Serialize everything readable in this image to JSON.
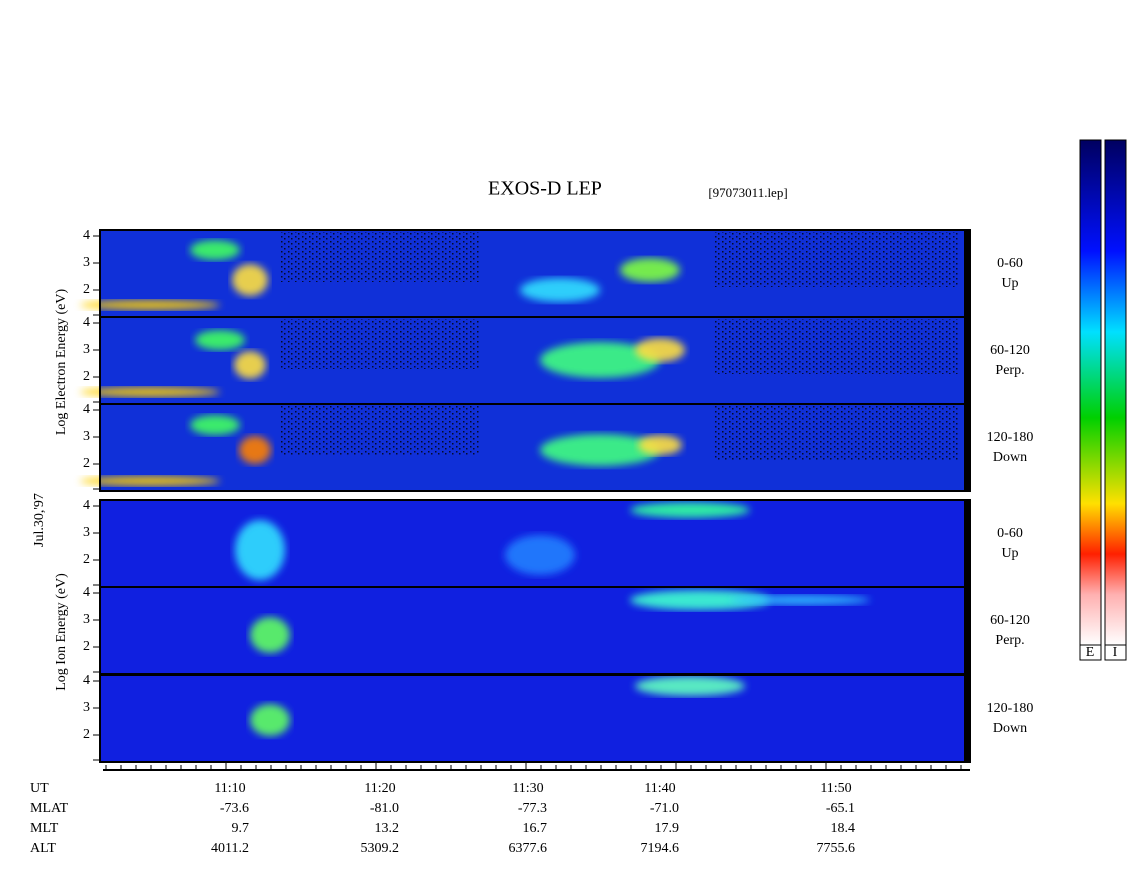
{
  "header": {
    "title": "EXOS-D LEP",
    "file": "[97073011.lep]"
  },
  "date": "Jul.30,'97",
  "electron": {
    "axis_label": "Log Electron Energy (eV)",
    "panels": [
      {
        "pitch": "0-60",
        "direction": "Up",
        "ticks": [
          4,
          3,
          2
        ]
      },
      {
        "pitch": "60-120",
        "direction": "Perp.",
        "ticks": [
          4,
          3,
          2
        ]
      },
      {
        "pitch": "120-180",
        "direction": "Down",
        "ticks": [
          4,
          3,
          2
        ]
      }
    ]
  },
  "ion": {
    "axis_label": "Log Ion Energy (eV)",
    "panels": [
      {
        "pitch": "0-60",
        "direction": "Up",
        "ticks": [
          4,
          3,
          2
        ]
      },
      {
        "pitch": "60-120",
        "direction": "Perp.",
        "ticks": [
          4,
          3,
          2
        ]
      },
      {
        "pitch": "120-180",
        "direction": "Down",
        "ticks": [
          4,
          3,
          2
        ]
      }
    ]
  },
  "time_axis": {
    "rows": [
      {
        "name": "UT",
        "values": [
          "11:10",
          "11:20",
          "11:30",
          "11:40",
          "11:50"
        ]
      },
      {
        "name": "MLAT",
        "values": [
          "-73.6",
          "-81.0",
          "-77.3",
          "-71.0",
          "-65.1"
        ]
      },
      {
        "name": "MLT",
        "values": [
          "9.7",
          "13.2",
          "16.7",
          "17.9",
          "18.4"
        ]
      },
      {
        "name": "ALT",
        "values": [
          "4011.2",
          "5309.2",
          "6377.6",
          "7194.6",
          "7755.6"
        ]
      }
    ]
  },
  "colorbar": {
    "labels": [
      "E",
      "I"
    ]
  }
}
